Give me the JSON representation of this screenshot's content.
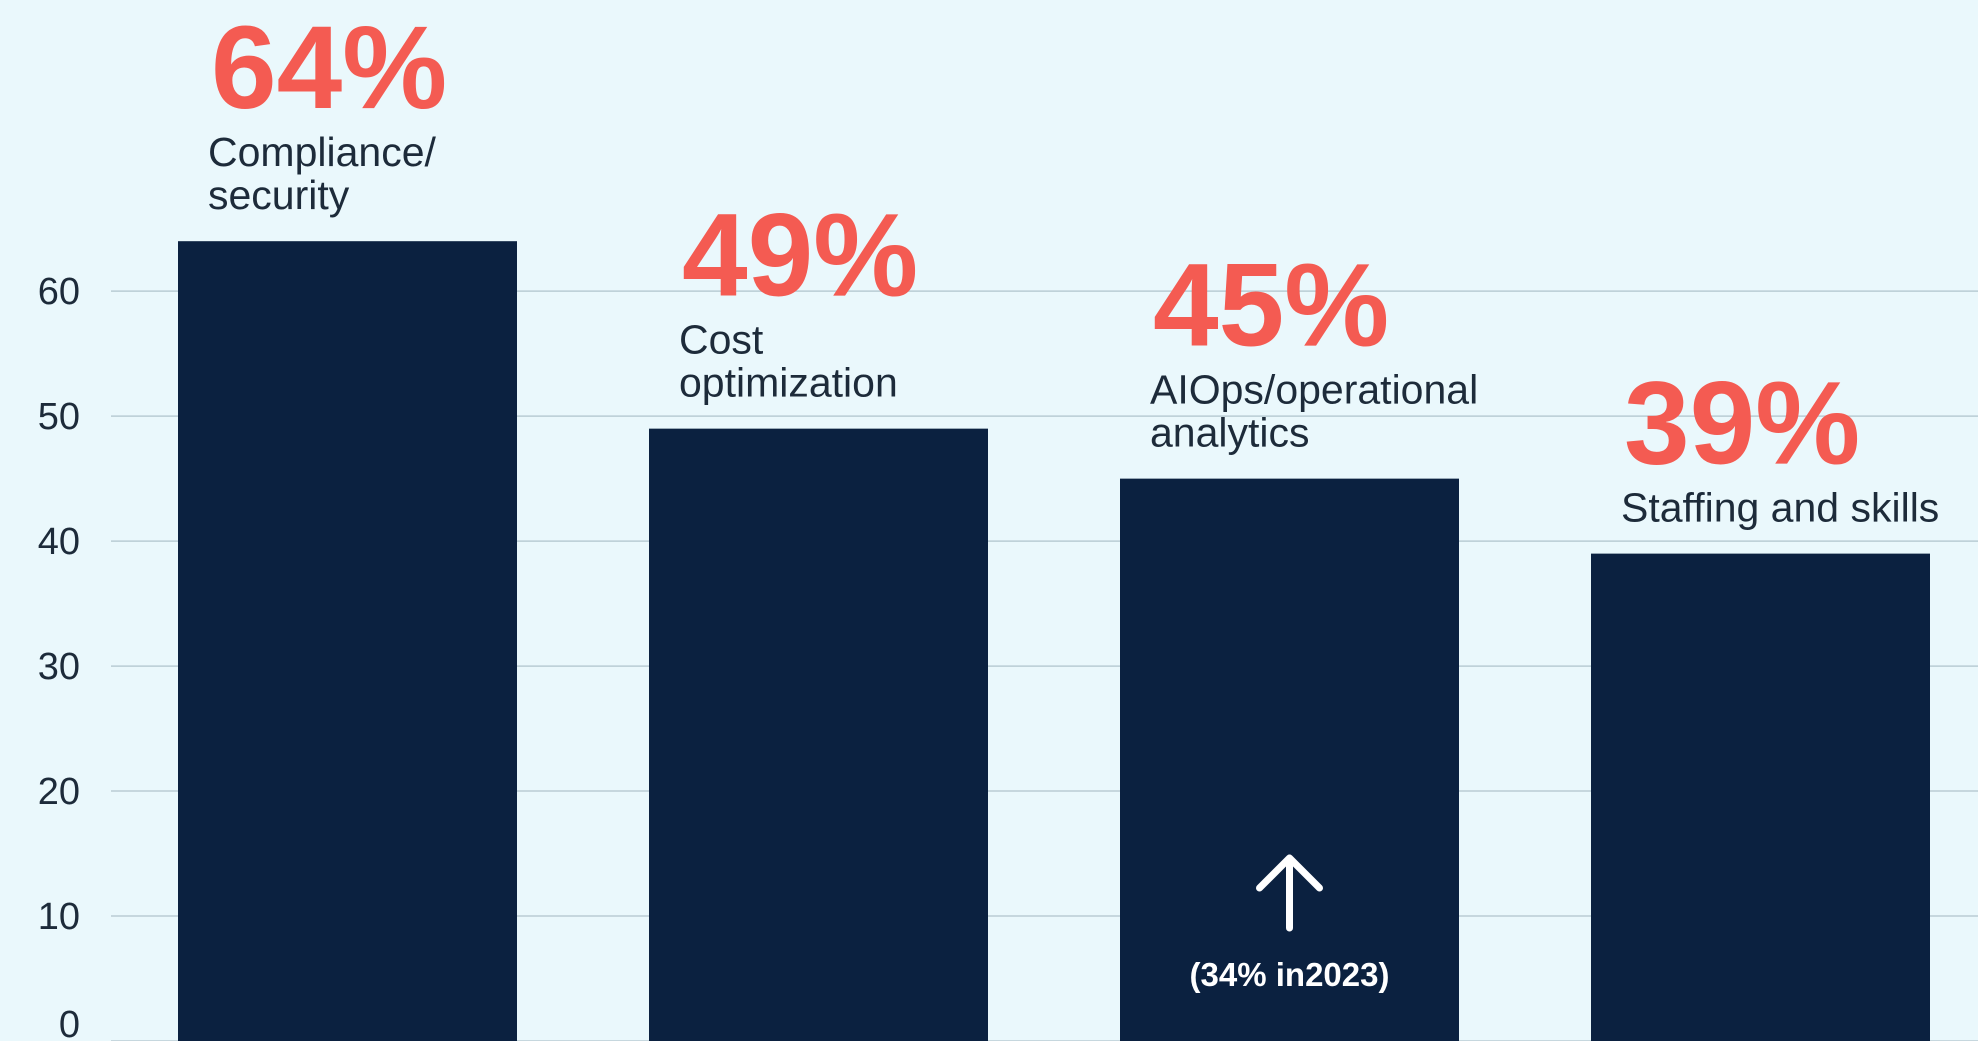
{
  "chart_data": {
    "type": "bar",
    "categories": [
      "Compliance/\nsecurity",
      "Cost\noptimization",
      "AIOps/operational\nanalytics",
      "Staffing and skills"
    ],
    "values": [
      64,
      49,
      45,
      39
    ],
    "value_labels": [
      "64%",
      "49%",
      "45%",
      "39%"
    ],
    "color": "#0b2140",
    "label_color": "#f45b52",
    "ylim": [
      0,
      83.3
    ],
    "yticks": [
      0,
      10,
      20,
      30,
      40,
      50,
      60
    ],
    "grid": true,
    "annotation": "(34% in2023)"
  }
}
